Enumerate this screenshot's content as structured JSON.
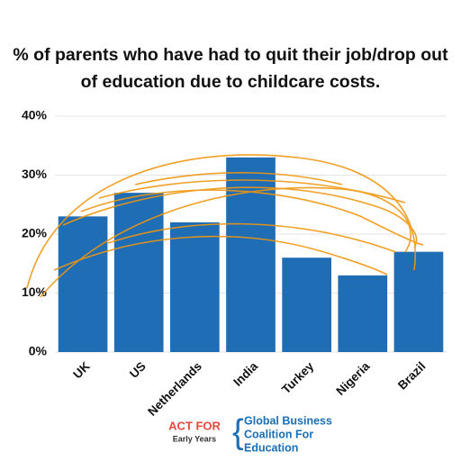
{
  "chart_data": {
    "type": "bar",
    "title": "% of parents who have had to quit their job/drop out of education due to childcare costs.",
    "categories": [
      "UK",
      "US",
      "Netherlands",
      "India",
      "Turkey",
      "Nigeria",
      "Brazil"
    ],
    "values": [
      23,
      27,
      22,
      33,
      16,
      13,
      17
    ],
    "color": "#1f6db5",
    "ylim": [
      0,
      40
    ],
    "yticks": [
      {
        "value": 0,
        "label": "0%"
      },
      {
        "value": 10,
        "label": "10%"
      },
      {
        "value": 20,
        "label": "20%"
      },
      {
        "value": 30,
        "label": "30%"
      },
      {
        "value": 40,
        "label": "40%"
      }
    ],
    "grid": true
  },
  "footer": {
    "logo_left": [
      "ACT FOR",
      "Early Years"
    ],
    "logo_right": [
      "Global Business",
      "Coalition For",
      "Education"
    ]
  }
}
